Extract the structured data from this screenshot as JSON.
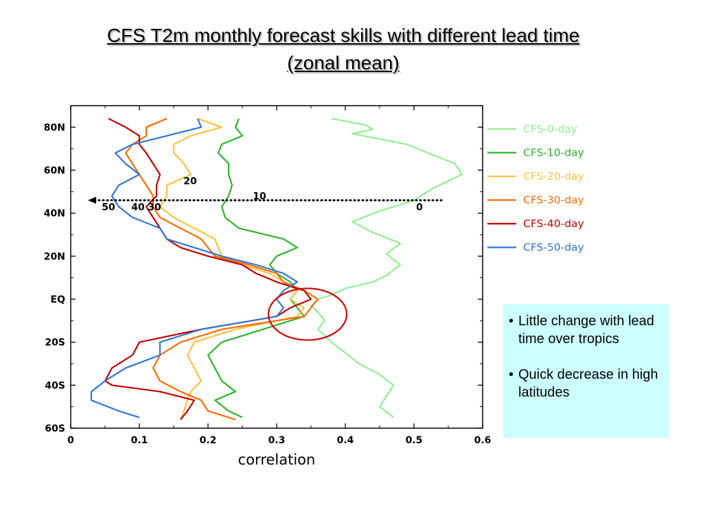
{
  "slide": {
    "title_line1": "CFS T2m monthly forecast skills with different lead time",
    "title_line2": "(zonal mean)"
  },
  "notes": {
    "bullets": [
      "Little change with lead time over tropics",
      "Quick decrease in high latitudes"
    ],
    "background": "#ccffff"
  },
  "chart_data": {
    "type": "line",
    "xlabel": "correlation",
    "ylabel": "",
    "xlim": [
      0,
      0.6
    ],
    "ylim": [
      -60,
      90
    ],
    "x_ticks": [
      "0",
      "0.1",
      "0.2",
      "0.3",
      "0.4",
      "0.5",
      "0.6"
    ],
    "y_ticks": [
      {
        "value": 80,
        "label": "80N"
      },
      {
        "value": 60,
        "label": "60N"
      },
      {
        "value": 40,
        "label": "40N"
      },
      {
        "value": 20,
        "label": "20N"
      },
      {
        "value": 0,
        "label": "EQ"
      },
      {
        "value": -20,
        "label": "20S"
      },
      {
        "value": -40,
        "label": "40S"
      },
      {
        "value": -60,
        "label": "60S"
      }
    ],
    "grid": false,
    "legend_position": "right",
    "series": [
      {
        "name": "CFS-0-day",
        "color": "#90ee90",
        "lat": [
          84,
          81,
          79,
          77,
          72,
          68,
          63,
          58,
          52,
          46,
          41,
          36,
          31,
          26,
          21,
          16,
          11,
          8,
          5,
          2,
          0,
          -3,
          -6,
          -10,
          -14,
          -20,
          -25,
          -30,
          -35,
          -40,
          -45,
          -50,
          -55
        ],
        "values": [
          0.38,
          0.43,
          0.44,
          0.41,
          0.49,
          0.52,
          0.56,
          0.57,
          0.53,
          0.5,
          0.45,
          0.41,
          0.44,
          0.48,
          0.46,
          0.48,
          0.46,
          0.44,
          0.4,
          0.38,
          0.36,
          0.35,
          0.36,
          0.37,
          0.36,
          0.38,
          0.4,
          0.42,
          0.45,
          0.47,
          0.46,
          0.45,
          0.47
        ]
      },
      {
        "name": "CFS-10-day",
        "color": "#2db52d",
        "lat": [
          84,
          80,
          76,
          72,
          68,
          63,
          58,
          53,
          48,
          43,
          38,
          33,
          28,
          24,
          20,
          16,
          12,
          8,
          4,
          0,
          -4,
          -8,
          -14,
          -20,
          -26,
          -32,
          -38,
          -43,
          -47,
          -52,
          -55
        ],
        "values": [
          0.245,
          0.24,
          0.25,
          0.22,
          0.215,
          0.23,
          0.23,
          0.235,
          0.23,
          0.22,
          0.225,
          0.245,
          0.31,
          0.33,
          0.3,
          0.29,
          0.3,
          0.32,
          0.33,
          0.32,
          0.33,
          0.34,
          0.28,
          0.22,
          0.2,
          0.21,
          0.22,
          0.24,
          0.21,
          0.23,
          0.25
        ]
      },
      {
        "name": "CFS-20-day",
        "color": "#ffc13d",
        "lat": [
          84,
          80,
          76,
          72,
          68,
          63,
          58,
          53,
          48,
          43,
          38,
          33,
          28,
          24,
          20,
          16,
          12,
          8,
          4,
          0,
          -4,
          -8,
          -14,
          -20,
          -26,
          -32,
          -38,
          -43,
          -47,
          -52,
          -56
        ],
        "values": [
          0.185,
          0.22,
          0.175,
          0.15,
          0.15,
          0.165,
          0.175,
          0.14,
          0.14,
          0.13,
          0.15,
          0.18,
          0.21,
          0.215,
          0.22,
          0.25,
          0.29,
          0.31,
          0.33,
          0.32,
          0.34,
          0.33,
          0.24,
          0.18,
          0.17,
          0.18,
          0.19,
          0.175,
          0.17,
          0.165,
          0.16
        ]
      },
      {
        "name": "CFS-30-day",
        "color": "#ff6a00",
        "lat": [
          84,
          80,
          76,
          72,
          68,
          63,
          58,
          53,
          48,
          43,
          38,
          33,
          28,
          24,
          20,
          16,
          12,
          8,
          4,
          0,
          -4,
          -8,
          -14,
          -20,
          -26,
          -32,
          -38,
          -43,
          -47,
          -52,
          -56
        ],
        "values": [
          0.14,
          0.11,
          0.11,
          0.09,
          0.08,
          0.09,
          0.1,
          0.11,
          0.12,
          0.12,
          0.13,
          0.16,
          0.19,
          0.2,
          0.21,
          0.26,
          0.3,
          0.31,
          0.34,
          0.36,
          0.35,
          0.34,
          0.22,
          0.16,
          0.13,
          0.12,
          0.13,
          0.16,
          0.19,
          0.2,
          0.24
        ]
      },
      {
        "name": "CFS-40-day",
        "color": "#c00000",
        "lat": [
          84,
          80,
          76,
          72,
          68,
          63,
          58,
          53,
          48,
          43,
          38,
          33,
          28,
          24,
          20,
          16,
          12,
          8,
          4,
          0,
          -4,
          -8,
          -14,
          -20,
          -26,
          -32,
          -38,
          -40,
          -43,
          -47,
          -52,
          -56
        ],
        "values": [
          0.055,
          0.08,
          0.1,
          0.1,
          0.11,
          0.12,
          0.13,
          0.125,
          0.125,
          0.11,
          0.12,
          0.13,
          0.14,
          0.16,
          0.2,
          0.25,
          0.27,
          0.3,
          0.34,
          0.35,
          0.32,
          0.3,
          0.19,
          0.1,
          0.09,
          0.06,
          0.05,
          0.06,
          0.13,
          0.18,
          0.17,
          0.16
        ]
      },
      {
        "name": "CFS-50-day",
        "color": "#2e75d6",
        "lat": [
          84,
          80,
          76,
          72,
          68,
          63,
          58,
          53,
          48,
          43,
          38,
          33,
          28,
          24,
          20,
          16,
          12,
          8,
          4,
          0,
          -4,
          -8,
          -14,
          -20,
          -26,
          -32,
          -38,
          -43,
          -47,
          -52,
          -55
        ],
        "values": [
          0.185,
          0.19,
          0.14,
          0.09,
          0.065,
          0.08,
          0.1,
          0.07,
          0.06,
          0.07,
          0.09,
          0.13,
          0.14,
          0.18,
          0.22,
          0.27,
          0.31,
          0.33,
          0.31,
          0.3,
          0.31,
          0.3,
          0.19,
          0.13,
          0.13,
          0.08,
          0.05,
          0.03,
          0.03,
          0.07,
          0.1
        ]
      }
    ],
    "annotations": {
      "arrow_lat": 46,
      "arrow_x_from": 0.54,
      "arrow_x_to": 0.025,
      "lead_labels": [
        {
          "text": "0",
          "x": 0.508,
          "lat": 43
        },
        {
          "text": "10",
          "x": 0.275,
          "lat": 48
        },
        {
          "text": "20",
          "x": 0.174,
          "lat": 55
        },
        {
          "text": "30",
          "x": 0.122,
          "lat": 43
        },
        {
          "text": "40",
          "x": 0.098,
          "lat": 43
        },
        {
          "text": "50",
          "x": 0.055,
          "lat": 43
        }
      ],
      "circle": {
        "x": 0.345,
        "lat": -7,
        "rx": 0.057,
        "rlat": 12,
        "color": "#d40000"
      }
    }
  }
}
